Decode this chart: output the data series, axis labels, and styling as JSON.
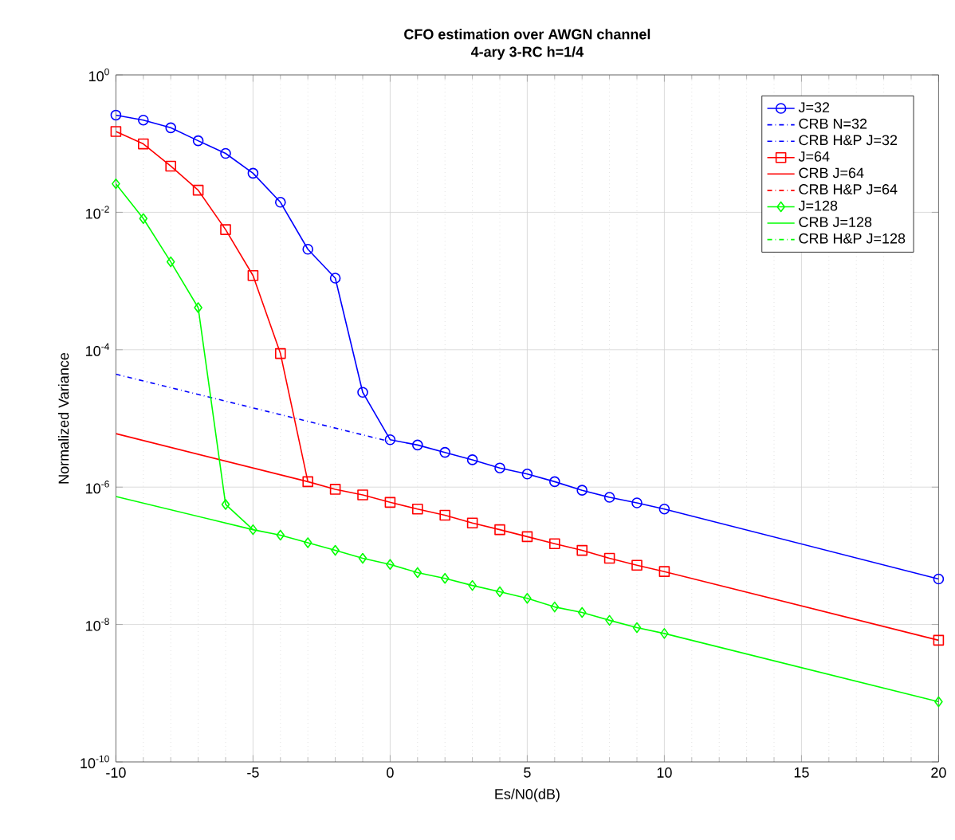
{
  "chart_data": {
    "type": "line",
    "title": "CFO estimation over AWGN channel",
    "subtitle": "4-ary 3-RC h=1/4",
    "xlabel": "Es/N0(dB)",
    "ylabel": "Normalized Variance",
    "log": "y",
    "grid": true,
    "legend": "top right",
    "xlim": [
      -10,
      20
    ],
    "xticks": [
      -10,
      -5,
      0,
      5,
      10,
      15,
      20
    ],
    "ylim": [
      1e-10,
      1
    ],
    "yticks": [
      {
        "value": 1e-10,
        "label": "10$^{-10}$"
      },
      {
        "value": 1e-08,
        "label": "10$^{-8}$"
      },
      {
        "value": 1e-06,
        "label": "10$^{-6}$"
      },
      {
        "value": 0.0001,
        "label": "10$^{-4}$"
      },
      {
        "value": 0.01,
        "label": "10$^{-2}$"
      },
      {
        "value": 1,
        "label": "10$^{0}$"
      }
    ],
    "series": [
      {
        "name": "J=32",
        "color": "#0000ff",
        "marker": "circle",
        "line_style": "solid",
        "x": [
          -10,
          -9,
          -8,
          -7,
          -6,
          -5,
          -4,
          -3,
          -2,
          -1,
          0,
          1,
          2,
          3,
          4,
          5,
          6,
          7,
          8,
          9,
          10,
          20
        ],
        "values": [
          0.26,
          0.22,
          0.17,
          0.11,
          0.072,
          0.037,
          0.014,
          0.0029,
          0.0011,
          2.4e-05,
          4.9e-06,
          4.1e-06,
          3.2e-06,
          2.5e-06,
          1.9e-06,
          1.55e-06,
          1.2e-06,
          9e-07,
          7.1e-07,
          5.9e-07,
          4.8e-07,
          4.6e-08
        ]
      },
      {
        "name": "CRB N=32",
        "color": "#0000ff",
        "marker": "none",
        "line_style": "dashdot",
        "x": [
          -10,
          0
        ],
        "values": [
          4.4e-05,
          4.6e-06
        ]
      },
      {
        "name": "CRB H&P J=32",
        "color": "#0000ff",
        "marker": "none",
        "line_style": "dashdot"
      },
      {
        "name": "J=64",
        "color": "#ff0000",
        "marker": "square",
        "line_style": "solid",
        "x": [
          -10,
          -9,
          -8,
          -7,
          -6,
          -5,
          -4,
          -3,
          -2,
          -1,
          0,
          1,
          2,
          3,
          4,
          5,
          6,
          7,
          8,
          9,
          10,
          20
        ],
        "values": [
          0.15,
          0.099,
          0.047,
          0.021,
          0.0056,
          0.0012,
          8.8e-05,
          1.2e-06,
          9.3e-07,
          7.7e-07,
          6e-07,
          4.8e-07,
          3.9e-07,
          3e-07,
          2.4e-07,
          1.9e-07,
          1.5e-07,
          1.2e-07,
          9.2e-08,
          7.3e-08,
          5.9e-08,
          5.9e-09
        ]
      },
      {
        "name": "CRB J=64",
        "color": "#ff0000",
        "marker": "none",
        "line_style": "solid",
        "x": [
          -10,
          -3
        ],
        "values": [
          6e-06,
          1.2e-06
        ]
      },
      {
        "name": "CRB H&P J=64",
        "color": "#ff0000",
        "marker": "none",
        "line_style": "dashdot"
      },
      {
        "name": "J=128",
        "color": "#00ff00",
        "marker": "diamond",
        "line_style": "solid",
        "x": [
          -10,
          -9,
          -8,
          -7,
          -6,
          -5,
          -4,
          -3,
          -2,
          -1,
          0,
          1,
          2,
          3,
          4,
          5,
          6,
          7,
          8,
          9,
          10,
          20
        ],
        "values": [
          0.026,
          0.0081,
          0.0019,
          0.00041,
          5.6e-07,
          2.4e-07,
          2e-07,
          1.55e-07,
          1.2e-07,
          9.2e-08,
          7.5e-08,
          5.7e-08,
          4.7e-08,
          3.7e-08,
          3e-08,
          2.4e-08,
          1.8e-08,
          1.5e-08,
          1.15e-08,
          9e-09,
          7.4e-09,
          7.5e-10
        ]
      },
      {
        "name": "CRB J=128",
        "color": "#00ff00",
        "marker": "none",
        "line_style": "solid",
        "x": [
          -10,
          -5
        ],
        "values": [
          7.3e-07,
          2.4e-07
        ]
      },
      {
        "name": "CRB H&P J=128",
        "color": "#00ff00",
        "marker": "none",
        "line_style": "dashdot"
      }
    ]
  }
}
